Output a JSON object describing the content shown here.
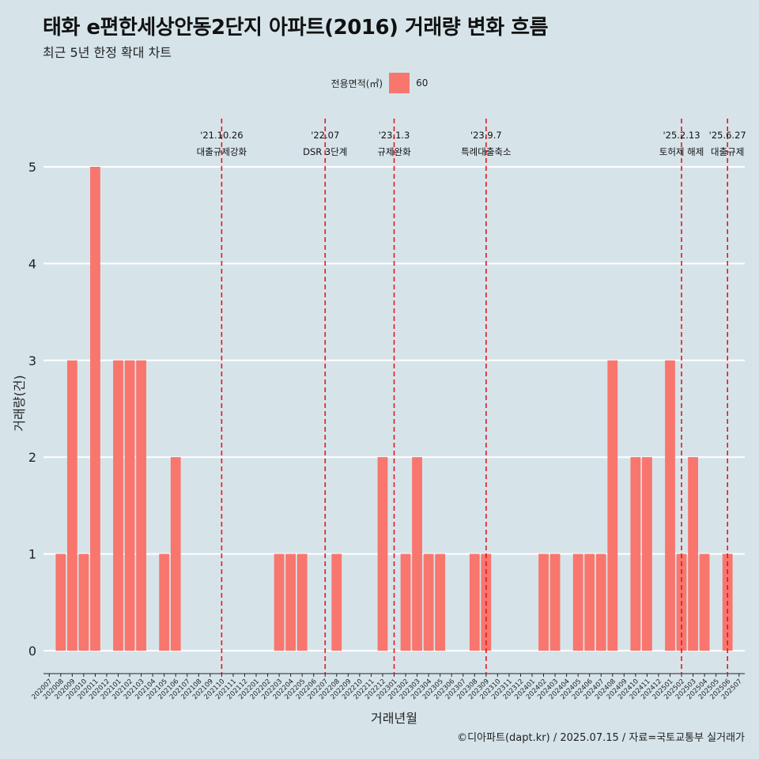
{
  "header": {
    "title": "태화 e편한세상안동2단지 아파트(2016) 거래량 변화 흐름",
    "subtitle": "최근 5년 한정 확대 차트"
  },
  "legend": {
    "title": "전용면적(㎡)",
    "item": "60",
    "color": "#f8766d"
  },
  "caption": "©디아파트(dapt.kr) / 2025.07.15 / 자료=국토교통부 실거래가",
  "colors": {
    "bar": "#f8766d",
    "background": "#d6e4ea",
    "grid": "#ffffff",
    "annotation_line": "#e8141c"
  },
  "chart_data": {
    "type": "bar",
    "xlabel": "거래년월",
    "ylabel": "거래량(건)",
    "ylim": [
      0,
      5
    ],
    "yticks": [
      0,
      1,
      2,
      3,
      4,
      5
    ],
    "grid": "horizontal",
    "legend_position": "top",
    "categories": [
      "202007",
      "202008",
      "202009",
      "202010",
      "202011",
      "202012",
      "202101",
      "202102",
      "202103",
      "202104",
      "202105",
      "202106",
      "202107",
      "202108",
      "202109",
      "202110",
      "202111",
      "202112",
      "202201",
      "202202",
      "202203",
      "202204",
      "202205",
      "202206",
      "202207",
      "202208",
      "202209",
      "202210",
      "202211",
      "202212",
      "202301",
      "202302",
      "202303",
      "202304",
      "202305",
      "202306",
      "202307",
      "202308",
      "202309",
      "202310",
      "202311",
      "202312",
      "202401",
      "202402",
      "202403",
      "202404",
      "202405",
      "202406",
      "202407",
      "202408",
      "202409",
      "202410",
      "202411",
      "202412",
      "202501",
      "202502",
      "202503",
      "202504",
      "202505",
      "202506",
      "202507"
    ],
    "series": [
      {
        "name": "60",
        "values": [
          0,
          1,
          3,
          1,
          5,
          0,
          3,
          3,
          3,
          0,
          1,
          2,
          0,
          0,
          0,
          0,
          0,
          0,
          0,
          0,
          1,
          1,
          1,
          0,
          0,
          1,
          0,
          0,
          0,
          2,
          0,
          1,
          2,
          1,
          1,
          0,
          0,
          1,
          1,
          0,
          0,
          0,
          0,
          1,
          1,
          0,
          1,
          1,
          1,
          3,
          0,
          2,
          2,
          0,
          3,
          1,
          2,
          1,
          0,
          1,
          0
        ]
      }
    ],
    "annotations": [
      {
        "x": "202110",
        "date": "'21.10.26",
        "label": "대출규제강화"
      },
      {
        "x": "202207",
        "date": "'22.07",
        "label": "DSR 3단계"
      },
      {
        "x": "202301",
        "date": "'23.1.3",
        "label": "규제완화"
      },
      {
        "x": "202309",
        "date": "'23.9.7",
        "label": "특례대출축소"
      },
      {
        "x": "202502",
        "date": "'25.2.13",
        "label": "토허제 해제"
      },
      {
        "x": "202506",
        "date": "'25.6.27",
        "label": "대출규제"
      }
    ]
  }
}
